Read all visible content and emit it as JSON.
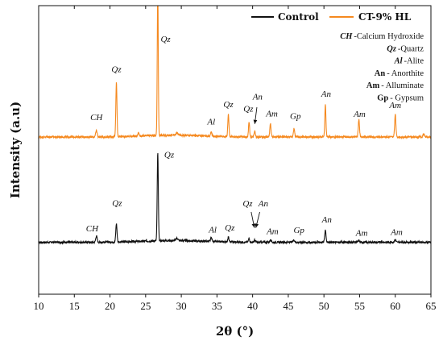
{
  "chart_data": {
    "type": "line",
    "xlabel": "2θ (°)",
    "ylabel": "Intensity (a.u)",
    "xlim": [
      10,
      65
    ],
    "x_ticks": [
      "10",
      "15",
      "20",
      "25",
      "30",
      "35",
      "40",
      "45",
      "50",
      "55",
      "60",
      "65"
    ],
    "y_ticks_shown": false,
    "ylim": [
      0,
      100
    ],
    "series": [
      {
        "name": "Control",
        "color": "#111111",
        "baseline": 18,
        "noise": 0.35,
        "peaks": [
          {
            "x": 18.1,
            "h": 2.2,
            "w": 0.14
          },
          {
            "x": 20.9,
            "h": 6.4,
            "w": 0.12
          },
          {
            "x": 26.7,
            "h": 30.5,
            "w": 0.11
          },
          {
            "x": 29.4,
            "h": 0.8,
            "w": 0.2
          },
          {
            "x": 34.2,
            "h": 1.2,
            "w": 0.15
          },
          {
            "x": 36.6,
            "h": 1.8,
            "w": 0.12
          },
          {
            "x": 39.5,
            "h": 1.3,
            "w": 0.12
          },
          {
            "x": 40.3,
            "h": 0.8,
            "w": 0.12
          },
          {
            "x": 42.5,
            "h": 0.8,
            "w": 0.14
          },
          {
            "x": 45.8,
            "h": 0.8,
            "w": 0.16
          },
          {
            "x": 50.2,
            "h": 4.4,
            "w": 0.12
          },
          {
            "x": 54.9,
            "h": 0.6,
            "w": 0.15
          },
          {
            "x": 60.0,
            "h": 1.0,
            "w": 0.14
          }
        ]
      },
      {
        "name": "CT-9% HL",
        "color": "#f5891f",
        "baseline": 54.5,
        "noise": 0.35,
        "peaks": [
          {
            "x": 18.1,
            "h": 2.2,
            "w": 0.14
          },
          {
            "x": 20.9,
            "h": 19.0,
            "w": 0.11
          },
          {
            "x": 24.0,
            "h": 1.2,
            "w": 0.12
          },
          {
            "x": 26.7,
            "h": 51.0,
            "w": 0.1
          },
          {
            "x": 29.4,
            "h": 0.8,
            "w": 0.2
          },
          {
            "x": 34.2,
            "h": 1.2,
            "w": 0.15
          },
          {
            "x": 36.6,
            "h": 7.8,
            "w": 0.11
          },
          {
            "x": 39.5,
            "h": 5.0,
            "w": 0.11
          },
          {
            "x": 40.3,
            "h": 2.2,
            "w": 0.12
          },
          {
            "x": 42.5,
            "h": 4.6,
            "w": 0.12
          },
          {
            "x": 45.8,
            "h": 2.8,
            "w": 0.13
          },
          {
            "x": 50.2,
            "h": 11.0,
            "w": 0.11
          },
          {
            "x": 54.9,
            "h": 6.0,
            "w": 0.12
          },
          {
            "x": 60.0,
            "h": 7.8,
            "w": 0.12
          },
          {
            "x": 64.0,
            "h": 1.0,
            "w": 0.15
          }
        ]
      }
    ],
    "peak_labels": [
      {
        "text": "CH",
        "x": 18.1,
        "y": 60.3
      },
      {
        "text": "Qz",
        "x": 20.9,
        "y": 77.0
      },
      {
        "text": "Qz",
        "x": 27.8,
        "y": 87.5
      },
      {
        "text": "Al",
        "x": 34.2,
        "y": 58.8
      },
      {
        "text": "Qz",
        "x": 36.6,
        "y": 64.8
      },
      {
        "text": "Qz",
        "x": 39.4,
        "y": 63.3
      },
      {
        "text": "An",
        "x": 40.7,
        "y": 67.4
      },
      {
        "text": "Am",
        "x": 42.7,
        "y": 61.6
      },
      {
        "text": "Gp",
        "x": 46.0,
        "y": 60.8
      },
      {
        "text": "An",
        "x": 50.3,
        "y": 68.4
      },
      {
        "text": "Am",
        "x": 55.0,
        "y": 61.4
      },
      {
        "text": "Am",
        "x": 60.0,
        "y": 64.5
      },
      {
        "text": "CH",
        "x": 17.5,
        "y": 21.8
      },
      {
        "text": "Qz",
        "x": 21.0,
        "y": 30.6
      },
      {
        "text": "Qz",
        "x": 28.3,
        "y": 47.4
      },
      {
        "text": "Al",
        "x": 34.4,
        "y": 21.4
      },
      {
        "text": "Qz",
        "x": 36.8,
        "y": 22.1
      },
      {
        "text": "Qz",
        "x": 39.3,
        "y": 30.5
      },
      {
        "text": "An",
        "x": 41.5,
        "y": 30.5
      },
      {
        "text": "Am",
        "x": 42.8,
        "y": 20.8
      },
      {
        "text": "Gp",
        "x": 46.5,
        "y": 21.2
      },
      {
        "text": "An",
        "x": 50.4,
        "y": 24.8
      },
      {
        "text": "Am",
        "x": 55.3,
        "y": 20.3
      },
      {
        "text": "Am",
        "x": 60.2,
        "y": 20.6
      }
    ],
    "arrows": [
      {
        "from": [
          39.8,
          28.5
        ],
        "to": [
          40.25,
          23.0
        ],
        "color": "#111111"
      },
      {
        "from": [
          41.0,
          28.5
        ],
        "to": [
          40.45,
          23.0
        ],
        "color": "#111111"
      },
      {
        "from": [
          40.6,
          64.8
        ],
        "to": [
          40.3,
          59.0
        ],
        "color": "#111111"
      }
    ],
    "legend": {
      "placement": "top-right",
      "entries": [
        {
          "label": "Control",
          "color": "#111111"
        },
        {
          "label": "CT-9% HL",
          "color": "#f5891f"
        }
      ]
    },
    "abbreviations": [
      {
        "abbr": "CH",
        "desc": "-Calcium Hydroxide",
        "italic": true
      },
      {
        "abbr": "Qz",
        "desc": "-Quartz",
        "italic": true
      },
      {
        "abbr": "Al",
        "desc": "-Alite",
        "italic": true
      },
      {
        "abbr": "An",
        "desc": "- Anorthite",
        "italic": false
      },
      {
        "abbr": "Am",
        "desc": "- Alluminate",
        "italic": false
      },
      {
        "abbr": "Gp",
        "desc": "- Gypsum",
        "italic": false
      }
    ]
  }
}
